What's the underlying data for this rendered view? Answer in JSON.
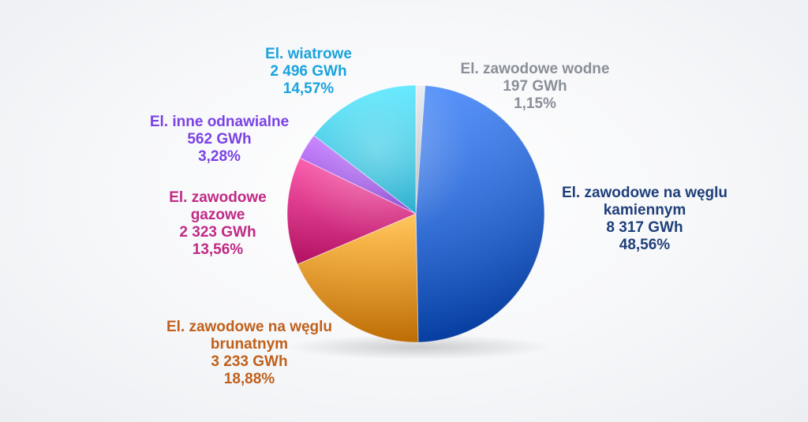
{
  "chart_data": {
    "type": "pie",
    "unit": "GWh",
    "slices": [
      {
        "name": "El. zawodowe wodne",
        "label_lines": [
          "El. zawodowe wodne",
          "197 GWh",
          "1,15%"
        ],
        "value": 197,
        "percent": 1.15,
        "color": "#c4c8ce",
        "label_color": "#8a8f99"
      },
      {
        "name": "El. zawodowe na węglu kamiennym",
        "label_lines": [
          "El. zawodowe na węglu",
          "kamiennym",
          "8 317 GWh",
          "48,56%"
        ],
        "value": 8317,
        "percent": 48.56,
        "color": "#2767d6",
        "label_color": "#1f3f7a"
      },
      {
        "name": "El. zawodowe na węglu brunatnym",
        "label_lines": [
          "El. zawodowe na węglu",
          "brunatnym",
          "3 233 GWh",
          "18,88%"
        ],
        "value": 3233,
        "percent": 18.88,
        "color": "#f59a24",
        "label_color": "#c0601b"
      },
      {
        "name": "El. zawodowe gazowe",
        "label_lines": [
          "El. zawodowe",
          "gazowe",
          "2 323 GWh",
          "13,56%"
        ],
        "value": 2323,
        "percent": 13.56,
        "color": "#d6257e",
        "label_color": "#c02a86"
      },
      {
        "name": "El. inne odnawialne",
        "label_lines": [
          "El. inne odnawialne",
          "562 GWh",
          "3,28%"
        ],
        "value": 562,
        "percent": 3.28,
        "color": "#9b4cf0",
        "label_color": "#7a42e6"
      },
      {
        "name": "El. wiatrowe",
        "label_lines": [
          "El. wiatrowe",
          "2 496 GWh",
          "14,57%"
        ],
        "value": 2496,
        "percent": 14.57,
        "color": "#27c3e6",
        "label_color": "#1aa3dc"
      }
    ]
  }
}
